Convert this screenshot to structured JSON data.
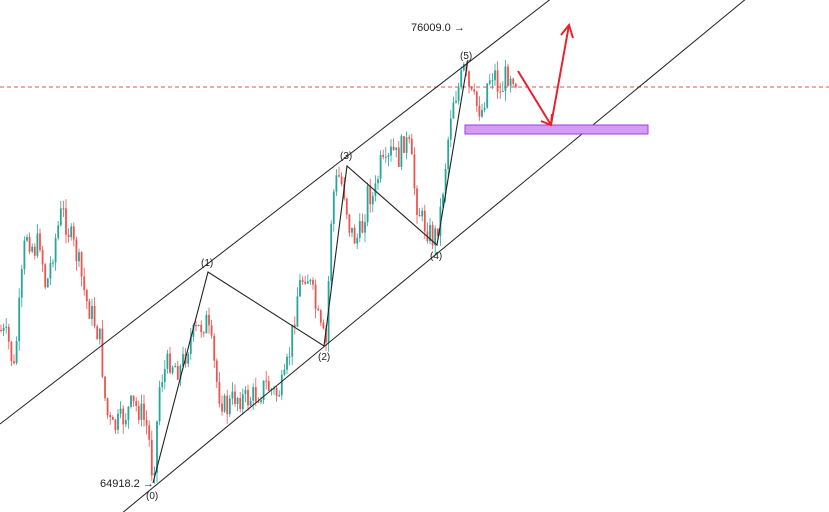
{
  "chart_data": {
    "type": "candlestick",
    "title": "",
    "xlabel": "",
    "ylabel": "",
    "ylim": [
      64300,
      76900
    ],
    "grid": false,
    "colors": {
      "up": "#26a69a",
      "down": "#ef5350",
      "channel": "#222222",
      "wave": "#222222",
      "arrow": "#e8212f",
      "zone_fill": "#d59cf6",
      "zone_border": "#9b3fd6",
      "dashed_line": "#e05050"
    },
    "price_labels": [
      {
        "text": "76009.0 →",
        "value": 76009.0
      },
      {
        "text": "64918.2 →",
        "value": 64918.2
      }
    ],
    "waves": [
      {
        "label": "(0)",
        "value": 64918.2
      },
      {
        "label": "(1)",
        "value": 70550
      },
      {
        "label": "(2)",
        "value": 68520
      },
      {
        "label": "(3)",
        "value": 73950
      },
      {
        "label": "(4)",
        "value": 71580
      },
      {
        "label": "(5)",
        "value": 76009.0
      }
    ],
    "reference_line": {
      "style": "dashed",
      "value": 75250
    },
    "zone": {
      "low": 74780,
      "high": 74880
    },
    "projection": [
      "down to zone",
      "then up"
    ]
  }
}
